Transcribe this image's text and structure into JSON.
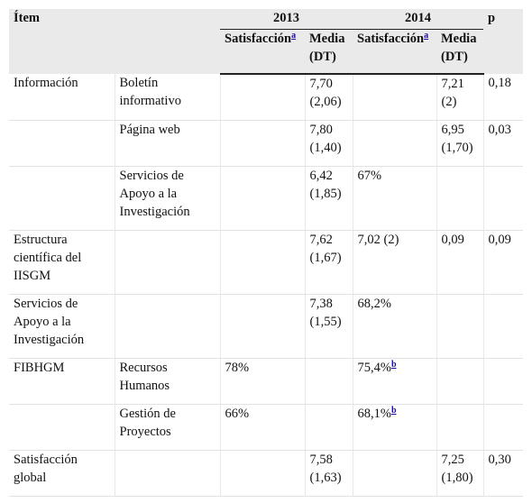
{
  "header": {
    "item": "Ítem",
    "year1": "2013",
    "year2": "2014",
    "p": "p",
    "satisfaction": "Satisfacción",
    "mean": "Media (DT)",
    "footnote_a": "a"
  },
  "rows": [
    {
      "item": "Información",
      "sub": "Boletín informativo",
      "s13": "",
      "m13": "7,70 (2,06)",
      "s14": "",
      "s14_note": "",
      "m14": "7,21 (2)",
      "p": "0,18"
    },
    {
      "item": "",
      "sub": "Página web",
      "s13": "",
      "m13": "7,80 (1,40)",
      "s14": "",
      "s14_note": "",
      "m14": "6,95 (1,70)",
      "p": "0,03"
    },
    {
      "item": "",
      "sub": "Servicios de Apoyo a la Investigación",
      "s13": "",
      "m13": "6,42 (1,85)",
      "s14": "67%",
      "s14_note": "",
      "m14": "",
      "p": ""
    },
    {
      "item": "Estructura científica del IISGM",
      "sub": "",
      "s13": "",
      "m13": "7,62 (1,67)",
      "s14": "7,02 (2)",
      "s14_note": "",
      "m14": "0,09",
      "p": "0,09"
    },
    {
      "item": "Servicios de Apoyo a la Investigación",
      "sub": "",
      "s13": "",
      "m13": "7,38 (1,55)",
      "s14": "68,2%",
      "s14_note": "",
      "m14": "",
      "p": ""
    },
    {
      "item": "FIBHGM",
      "sub": "Recursos Humanos",
      "s13": "78%",
      "m13": "",
      "s14": "75,4%",
      "s14_note": "b",
      "m14": "",
      "p": ""
    },
    {
      "item": "",
      "sub": "Gestión de Proyectos",
      "s13": "66%",
      "m13": "",
      "s14": "68,1%",
      "s14_note": "b",
      "m14": "",
      "p": ""
    },
    {
      "item": "Satisfacción global",
      "sub": "",
      "s13": "",
      "m13": "7,58 (1,63)",
      "s14": "",
      "s14_note": "",
      "m14": "7,25 (1,80)",
      "p": "0,30"
    }
  ]
}
